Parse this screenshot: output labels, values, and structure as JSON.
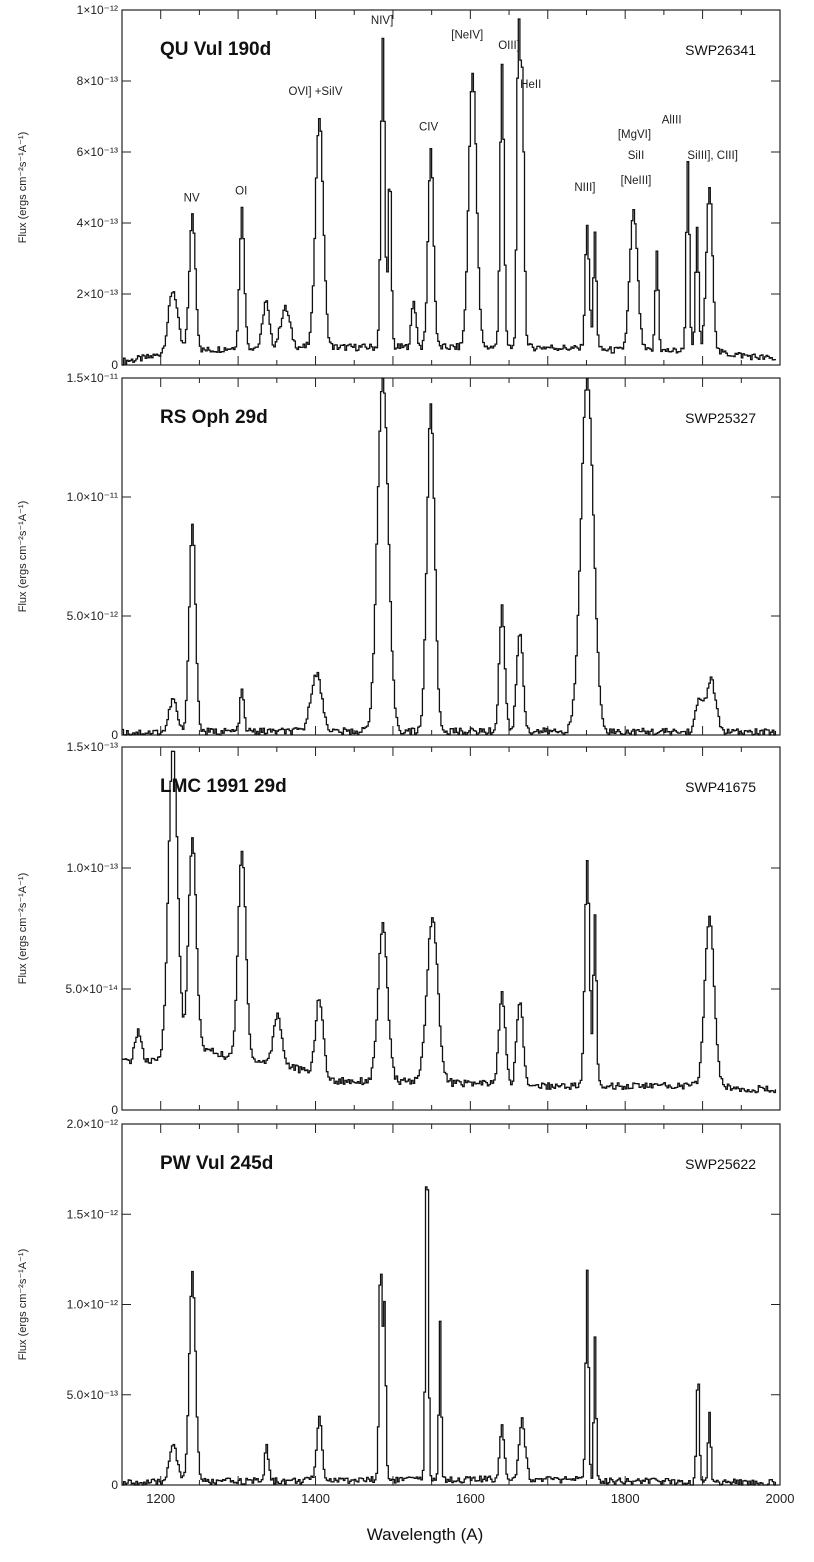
{
  "figure": {
    "xlabel": "Wavelength (A)",
    "xticks": [
      "1200",
      "1400",
      "1600",
      "1800",
      "2000"
    ]
  },
  "chart_data": [
    {
      "type": "line",
      "title": "QU Vul 190d",
      "id_label": "SWP26341",
      "ylabel": "Flux (ergs cm⁻²s⁻¹A⁻¹)",
      "xlim": [
        1150,
        2000
      ],
      "ylim": [
        0,
        1e-12
      ],
      "yticks": [
        "0",
        "2×10⁻¹³",
        "4×10⁻¹³",
        "6×10⁻¹³",
        "8×10⁻¹³",
        "1×10⁻¹²"
      ],
      "continuum": [
        [
          1150,
          1e-14
        ],
        [
          1180,
          2e-14
        ],
        [
          1200,
          3e-14
        ],
        [
          1300,
          5e-14
        ],
        [
          1420,
          5e-14
        ],
        [
          1560,
          5e-14
        ],
        [
          1700,
          5e-14
        ],
        [
          1800,
          4e-14
        ],
        [
          1900,
          4e-14
        ],
        [
          2000,
          1.5e-14
        ]
      ],
      "peaks": [
        {
          "x": 1215,
          "y": 2.1e-13,
          "w": 6
        },
        {
          "x": 1240,
          "y": 4.2e-13,
          "w": 4
        },
        {
          "x": 1304,
          "y": 4.4e-13,
          "w": 3
        },
        {
          "x": 1335,
          "y": 1.8e-13,
          "w": 4
        },
        {
          "x": 1360,
          "y": 1.6e-13,
          "w": 6
        },
        {
          "x": 1404,
          "y": 7e-13,
          "w": 5
        },
        {
          "x": 1486,
          "y": 9.2e-13,
          "w": 2.5
        },
        {
          "x": 1495,
          "y": 5.4e-13,
          "w": 2
        },
        {
          "x": 1548,
          "y": 6.1e-13,
          "w": 3.5
        },
        {
          "x": 1526,
          "y": 1.8e-13,
          "w": 3
        },
        {
          "x": 1602,
          "y": 8.3e-13,
          "w": 5
        },
        {
          "x": 1640,
          "y": 8.5e-13,
          "w": 2.5
        },
        {
          "x": 1661,
          "y": 8.5e-13,
          "w": 2
        },
        {
          "x": 1666,
          "y": 8.1e-13,
          "w": 2.5
        },
        {
          "x": 1750,
          "y": 4e-13,
          "w": 2.5
        },
        {
          "x": 1760,
          "y": 3.7e-13,
          "w": 2
        },
        {
          "x": 1810,
          "y": 4.3e-13,
          "w": 5
        },
        {
          "x": 1840,
          "y": 3.2e-13,
          "w": 2
        },
        {
          "x": 1880,
          "y": 5.8e-13,
          "w": 2
        },
        {
          "x": 1892,
          "y": 3.9e-13,
          "w": 2
        },
        {
          "x": 1908,
          "y": 5e-13,
          "w": 4
        }
      ],
      "annotations": [
        {
          "text": "NV",
          "x": 1240,
          "y": 4.6e-13
        },
        {
          "text": "OI",
          "x": 1304,
          "y": 4.8e-13
        },
        {
          "text": "OVI] +SiIV",
          "x": 1400,
          "y": 7.6e-13
        },
        {
          "text": "NIV]",
          "x": 1486,
          "y": 9.6e-13
        },
        {
          "text": "[NeIV]",
          "x": 1596,
          "y": 9.2e-13
        },
        {
          "text": "OIII]",
          "x": 1650,
          "y": 8.9e-13
        },
        {
          "text": "HeII",
          "x": 1678,
          "y": 7.8e-13
        },
        {
          "text": "CIV",
          "x": 1546,
          "y": 6.6e-13
        },
        {
          "text": "NIII]",
          "x": 1748,
          "y": 4.9e-13
        },
        {
          "text": "[MgVI]",
          "x": 1812,
          "y": 6.4e-13
        },
        {
          "text": "SiII",
          "x": 1814,
          "y": 5.8e-13
        },
        {
          "text": "[NeIII]",
          "x": 1814,
          "y": 5.1e-13
        },
        {
          "text": "AlIII",
          "x": 1860,
          "y": 6.8e-13
        },
        {
          "text": "SiIII], CIII]",
          "x": 1913,
          "y": 5.8e-13
        }
      ]
    },
    {
      "type": "line",
      "title": "RS Oph 29d",
      "id_label": "SWP25327",
      "ylabel": "Flux (ergs cm⁻²s⁻¹A⁻¹)",
      "xlim": [
        1150,
        2000
      ],
      "ylim": [
        0,
        1.5e-11
      ],
      "yticks": [
        "0",
        "5.0×10⁻¹²",
        "1.0×10⁻¹¹",
        "1.5×10⁻¹¹"
      ],
      "continuum": [
        [
          1150,
          1e-13
        ],
        [
          1300,
          1.5e-13
        ],
        [
          1500,
          1.5e-13
        ],
        [
          1700,
          1.5e-13
        ],
        [
          2000,
          1e-13
        ]
      ],
      "peaks": [
        {
          "x": 1215,
          "y": 1.5e-12,
          "w": 5
        },
        {
          "x": 1240,
          "y": 9e-12,
          "w": 4
        },
        {
          "x": 1304,
          "y": 1.9e-12,
          "w": 2.5
        },
        {
          "x": 1400,
          "y": 2.6e-12,
          "w": 7
        },
        {
          "x": 1486,
          "y": 1.5e-11,
          "w": 7
        },
        {
          "x": 1548,
          "y": 1.38e-11,
          "w": 5
        },
        {
          "x": 1640,
          "y": 5.4e-12,
          "w": 3.5
        },
        {
          "x": 1663,
          "y": 4.4e-12,
          "w": 4
        },
        {
          "x": 1750,
          "y": 1.5e-11,
          "w": 8
        },
        {
          "x": 1895,
          "y": 1.4e-12,
          "w": 5
        },
        {
          "x": 1910,
          "y": 2.3e-12,
          "w": 6
        }
      ],
      "annotations": []
    },
    {
      "type": "line",
      "title": "LMC 1991 29d",
      "id_label": "SWP41675",
      "ylabel": "Flux (ergs cm⁻²s⁻¹A⁻¹)",
      "xlim": [
        1150,
        2000
      ],
      "ylim": [
        0,
        1.5e-13
      ],
      "yticks": [
        "0",
        "5.0×10⁻¹⁴",
        "1.0×10⁻¹³",
        "1.5×10⁻¹³"
      ],
      "continuum": [
        [
          1150,
          2e-14
        ],
        [
          1200,
          2e-14
        ],
        [
          1260,
          2.5e-14
        ],
        [
          1300,
          2e-14
        ],
        [
          1350,
          2e-14
        ],
        [
          1420,
          1.2e-14
        ],
        [
          1500,
          1.2e-14
        ],
        [
          1600,
          1.1e-14
        ],
        [
          1700,
          1e-14
        ],
        [
          1800,
          1e-14
        ],
        [
          1900,
          1e-14
        ],
        [
          2000,
          8e-15
        ]
      ],
      "peaks": [
        {
          "x": 1170,
          "y": 3.3e-14,
          "w": 4
        },
        {
          "x": 1215,
          "y": 1.5e-13,
          "w": 6
        },
        {
          "x": 1240,
          "y": 1.12e-13,
          "w": 5
        },
        {
          "x": 1304,
          "y": 1.08e-13,
          "w": 5
        },
        {
          "x": 1350,
          "y": 4e-14,
          "w": 5
        },
        {
          "x": 1404,
          "y": 4.6e-14,
          "w": 5
        },
        {
          "x": 1486,
          "y": 7.6e-14,
          "w": 6
        },
        {
          "x": 1550,
          "y": 8e-14,
          "w": 7
        },
        {
          "x": 1640,
          "y": 4.8e-14,
          "w": 4
        },
        {
          "x": 1663,
          "y": 4.6e-14,
          "w": 4
        },
        {
          "x": 1750,
          "y": 1.03e-13,
          "w": 3
        },
        {
          "x": 1760,
          "y": 8.1e-14,
          "w": 2
        },
        {
          "x": 1908,
          "y": 8e-14,
          "w": 6
        }
      ],
      "annotations": []
    },
    {
      "type": "line",
      "title": "PW Vul 245d",
      "id_label": "SWP25622",
      "ylabel": "Flux (ergs cm⁻²s⁻¹A⁻¹)",
      "xlim": [
        1150,
        2000
      ],
      "ylim": [
        0,
        2e-12
      ],
      "yticks": [
        "0",
        "5.0×10⁻¹³",
        "1.0×10⁻¹²",
        "1.5×10⁻¹²",
        "2.0×10⁻¹²"
      ],
      "continuum": [
        [
          1150,
          1e-14
        ],
        [
          1300,
          2e-14
        ],
        [
          1500,
          3e-14
        ],
        [
          1700,
          3e-14
        ],
        [
          2000,
          1e-14
        ]
      ],
      "peaks": [
        {
          "x": 1215,
          "y": 2.3e-13,
          "w": 5
        },
        {
          "x": 1240,
          "y": 1.18e-12,
          "w": 4
        },
        {
          "x": 1336,
          "y": 2.1e-13,
          "w": 2.5
        },
        {
          "x": 1404,
          "y": 3.7e-13,
          "w": 3.5
        },
        {
          "x": 1483,
          "y": 1.28e-12,
          "w": 1.8
        },
        {
          "x": 1488,
          "y": 1e-12,
          "w": 1.8
        },
        {
          "x": 1543,
          "y": 1.9e-12,
          "w": 1.8
        },
        {
          "x": 1560,
          "y": 9e-13,
          "w": 1.5
        },
        {
          "x": 1640,
          "y": 3.3e-13,
          "w": 3
        },
        {
          "x": 1666,
          "y": 3.6e-13,
          "w": 4
        },
        {
          "x": 1750,
          "y": 1.2e-12,
          "w": 1.8
        },
        {
          "x": 1760,
          "y": 8.3e-13,
          "w": 1.5
        },
        {
          "x": 1893,
          "y": 6.3e-13,
          "w": 1.8
        },
        {
          "x": 1908,
          "y": 4e-13,
          "w": 1.8
        }
      ],
      "annotations": []
    }
  ]
}
